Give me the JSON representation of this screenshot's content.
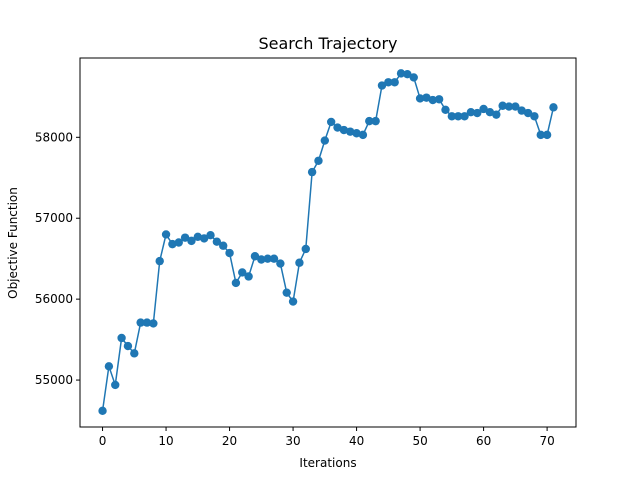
{
  "chart_data": {
    "type": "line",
    "title": "Search Trajectory",
    "xlabel": "Iterations",
    "ylabel": "Objective Function",
    "xlim": [
      -3.55,
      74.55
    ],
    "ylim": [
      54420,
      58980
    ],
    "xticks": [
      0,
      10,
      20,
      30,
      40,
      50,
      60,
      70
    ],
    "yticks": [
      55000,
      56000,
      57000,
      58000
    ],
    "grid": false,
    "marker": "circle",
    "series": [
      {
        "color": "#1f77b4",
        "x": [
          0,
          1,
          2,
          3,
          4,
          5,
          6,
          7,
          8,
          9,
          10,
          11,
          12,
          13,
          14,
          15,
          16,
          17,
          18,
          19,
          20,
          21,
          22,
          23,
          24,
          25,
          26,
          27,
          28,
          29,
          30,
          31,
          32,
          33,
          34,
          35,
          36,
          37,
          38,
          39,
          40,
          41,
          42,
          43,
          44,
          45,
          46,
          47,
          48,
          49,
          50,
          51,
          52,
          53,
          54,
          55,
          56,
          57,
          58,
          59,
          60,
          61,
          62,
          63,
          64,
          65,
          66,
          67,
          68,
          69,
          70,
          71
        ],
        "y": [
          54620,
          55170,
          54940,
          55520,
          55420,
          55330,
          55710,
          55710,
          55700,
          56470,
          56800,
          56680,
          56700,
          56760,
          56720,
          56770,
          56750,
          56790,
          56710,
          56660,
          56570,
          56200,
          56330,
          56280,
          56530,
          56490,
          56500,
          56500,
          56440,
          56080,
          55970,
          56450,
          56620,
          57570,
          57710,
          57960,
          58190,
          58120,
          58090,
          58070,
          58050,
          58030,
          58200,
          58200,
          58640,
          58680,
          58680,
          58790,
          58780,
          58740,
          58480,
          58490,
          58460,
          58470,
          58340,
          58260,
          58260,
          58260,
          58310,
          58300,
          58350,
          58310,
          58280,
          58390,
          58380,
          58380,
          58330,
          58300,
          58260,
          58030,
          58030,
          58370
        ]
      }
    ]
  }
}
